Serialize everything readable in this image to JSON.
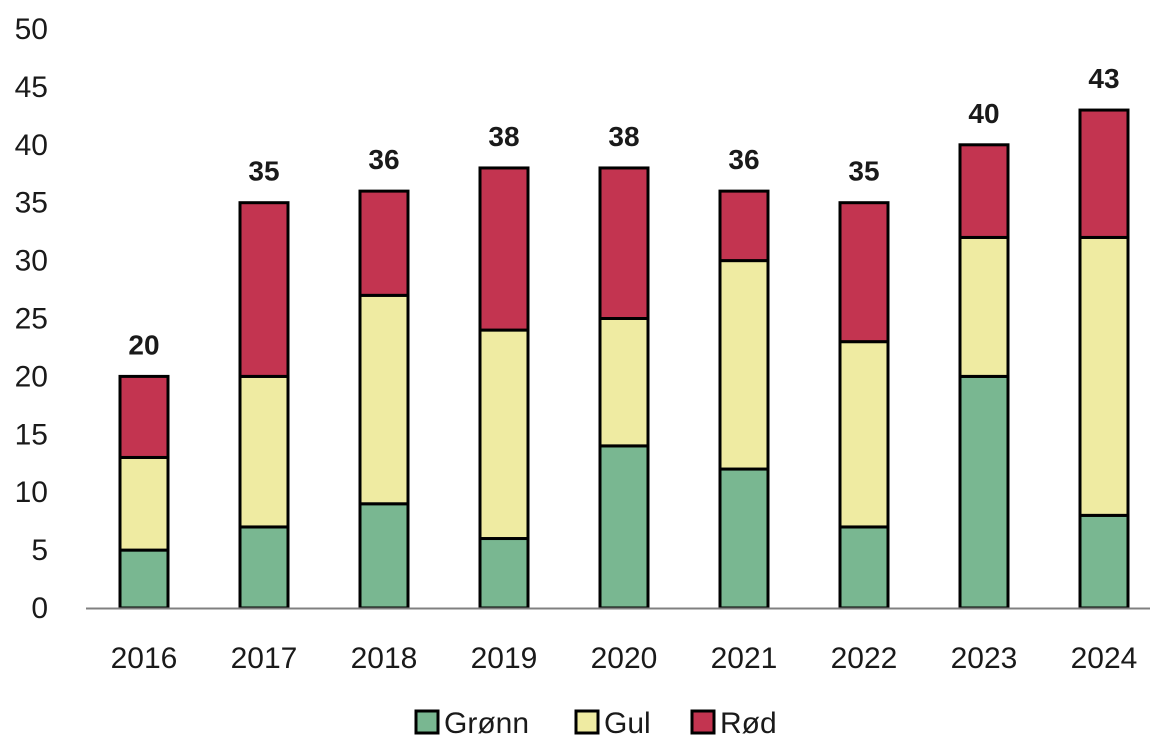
{
  "chart_data": {
    "type": "bar",
    "stacked": true,
    "categories": [
      "2016",
      "2017",
      "2018",
      "2019",
      "2020",
      "2021",
      "2022",
      "2023",
      "2024"
    ],
    "series": [
      {
        "name": "Grønn",
        "color": "#79b791",
        "values": [
          5,
          7,
          9,
          6,
          14,
          12,
          7,
          20,
          8
        ]
      },
      {
        "name": "Gul",
        "color": "#efeba2",
        "values": [
          8,
          13,
          18,
          18,
          11,
          18,
          16,
          12,
          24
        ]
      },
      {
        "name": "Rød",
        "color": "#c33450",
        "values": [
          7,
          15,
          9,
          14,
          13,
          6,
          12,
          8,
          11
        ]
      }
    ],
    "totals": [
      "20",
      "35",
      "36",
      "38",
      "38",
      "36",
      "35",
      "40",
      "43"
    ],
    "yticks": [
      "0",
      "5",
      "10",
      "15",
      "20",
      "25",
      "30",
      "35",
      "40",
      "45",
      "50"
    ],
    "ylim": [
      0,
      50
    ],
    "grid": false,
    "legend_position": "bottom"
  }
}
